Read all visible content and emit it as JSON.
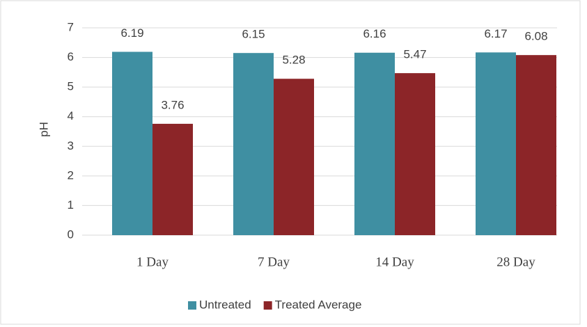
{
  "chart_data": {
    "type": "bar",
    "ylabel": "pH",
    "categories": [
      "1 Day",
      "7 Day",
      "14 Day",
      "28 Day"
    ],
    "series": [
      {
        "name": "Untreated",
        "color": "#3f8fa2",
        "values": [
          6.19,
          6.15,
          6.16,
          6.17
        ]
      },
      {
        "name": "Treated Average",
        "color": "#8c2528",
        "values": [
          3.76,
          5.28,
          5.47,
          6.08
        ]
      }
    ],
    "ylim": [
      0,
      7
    ],
    "yticks": [
      0,
      1,
      2,
      3,
      4,
      5,
      6,
      7
    ],
    "grid": true,
    "legend": "bottom"
  }
}
